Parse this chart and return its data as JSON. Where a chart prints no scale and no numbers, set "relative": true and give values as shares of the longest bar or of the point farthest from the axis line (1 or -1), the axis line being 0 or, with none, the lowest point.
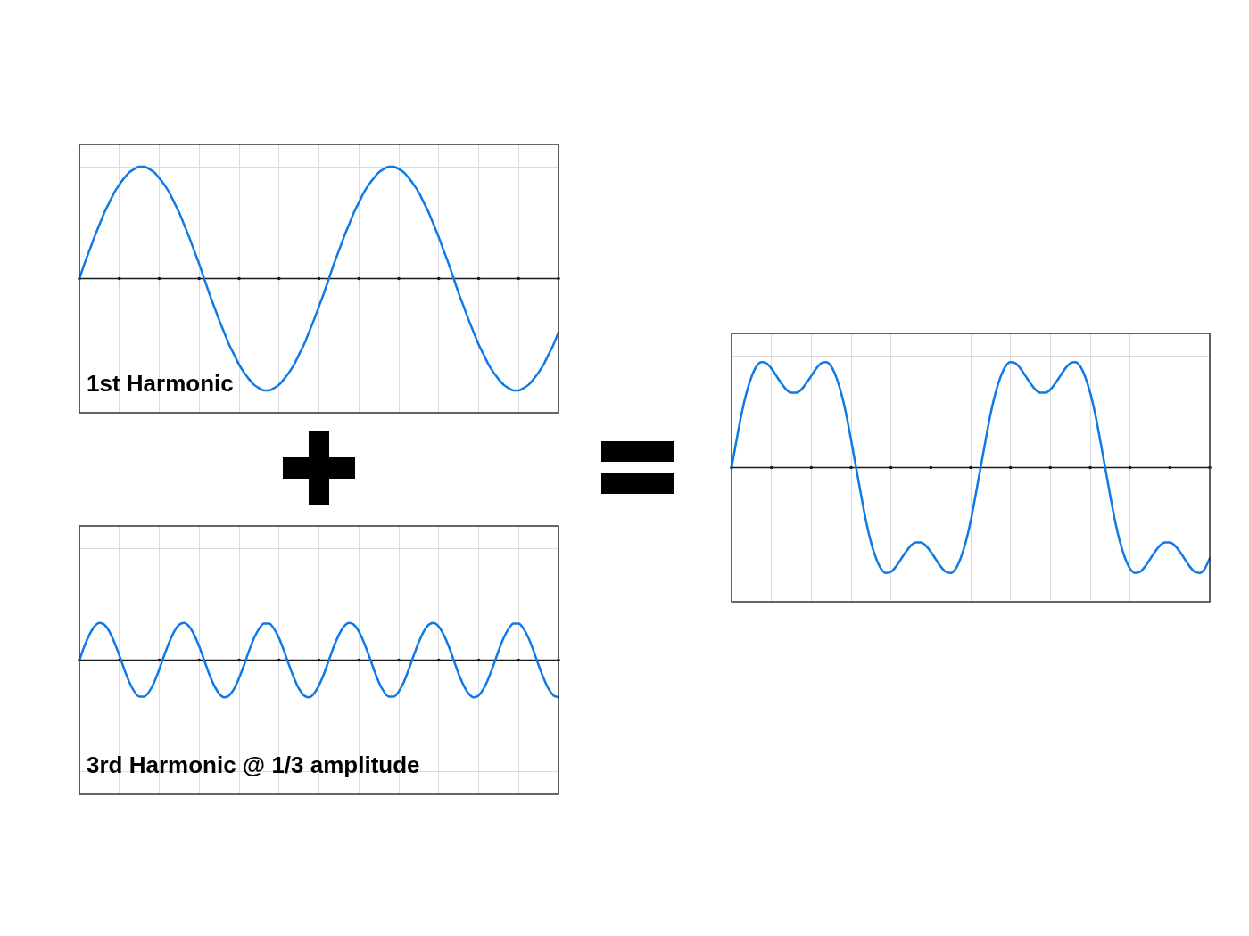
{
  "chart_data": [
    {
      "type": "line",
      "title": "1st Harmonic",
      "categories": [
        null,
        null,
        null,
        null,
        null,
        null,
        null,
        null,
        null,
        null,
        null,
        null,
        null,
        null,
        null,
        null,
        null,
        null,
        null,
        null,
        null,
        null,
        null,
        null,
        null,
        null,
        null,
        null,
        null,
        null,
        null,
        null,
        null,
        null,
        null,
        null,
        null,
        null,
        null,
        null,
        null,
        null,
        null,
        null,
        null,
        null,
        null,
        null,
        null,
        null,
        null,
        null,
        null,
        null,
        null,
        null,
        null,
        null,
        null,
        null,
        null,
        null,
        null,
        null,
        null,
        null,
        null,
        null,
        null,
        null,
        null,
        null,
        null,
        null,
        null,
        null,
        null,
        null,
        null,
        null,
        null,
        null,
        null,
        null,
        null,
        null,
        null,
        null,
        null,
        null,
        null,
        null,
        null,
        null,
        null,
        null,
        null
      ],
      "values": [
        0,
        0.13,
        0.25,
        0.37,
        0.48,
        0.59,
        0.68,
        0.77,
        0.84,
        0.9,
        0.95,
        0.98,
        1,
        1,
        0.98,
        0.95,
        0.9,
        0.84,
        0.77,
        0.68,
        0.59,
        0.48,
        0.37,
        0.25,
        0.13,
        0,
        -0.13,
        -0.25,
        -0.37,
        -0.48,
        -0.59,
        -0.68,
        -0.77,
        -0.84,
        -0.9,
        -0.95,
        -0.98,
        -1,
        -1,
        -0.98,
        -0.95,
        -0.9,
        -0.84,
        -0.77,
        -0.68,
        -0.59,
        -0.48,
        -0.37,
        -0.25,
        -0.13,
        0,
        0.13,
        0.25,
        0.37,
        0.48,
        0.59,
        0.68,
        0.77,
        0.84,
        0.9,
        0.95,
        0.98,
        1,
        1,
        0.98,
        0.95,
        0.9,
        0.84,
        0.77,
        0.68,
        0.59,
        0.48,
        0.37,
        0.25,
        0.13,
        0,
        -0.13,
        -0.25,
        -0.37,
        -0.48,
        -0.59,
        -0.68,
        -0.77,
        -0.84,
        -0.9,
        -0.95,
        -0.98,
        -1,
        -1,
        -0.98,
        -0.95,
        -0.9,
        -0.84,
        -0.77,
        -0.68,
        -0.59,
        -0.48
      ],
      "color": "#0f7ae5",
      "relative": true,
      "grid": true,
      "tick_labels": false
    },
    {
      "type": "line",
      "title": "3rd Harmonic @ 1/3 amplitude",
      "categories": [
        null,
        null,
        null,
        null,
        null,
        null,
        null,
        null,
        null,
        null,
        null,
        null,
        null,
        null,
        null,
        null,
        null,
        null,
        null,
        null,
        null,
        null,
        null,
        null,
        null,
        null,
        null,
        null,
        null,
        null,
        null,
        null,
        null,
        null,
        null,
        null,
        null,
        null,
        null,
        null,
        null,
        null,
        null,
        null,
        null,
        null,
        null,
        null,
        null,
        null,
        null,
        null,
        null,
        null,
        null,
        null,
        null,
        null,
        null,
        null,
        null,
        null,
        null,
        null,
        null,
        null,
        null,
        null,
        null,
        null,
        null,
        null,
        null,
        null,
        null,
        null,
        null,
        null,
        null,
        null,
        null,
        null,
        null,
        null,
        null,
        null,
        null,
        null,
        null,
        null,
        null,
        null,
        null,
        null,
        null,
        null,
        null
      ],
      "values": [
        0,
        0.37,
        0.68,
        0.9,
        1,
        0.95,
        0.77,
        0.48,
        0.13,
        -0.25,
        -0.59,
        -0.84,
        -0.98,
        -0.98,
        -0.84,
        -0.59,
        -0.25,
        0.13,
        0.48,
        0.77,
        0.95,
        1,
        0.9,
        0.68,
        0.37,
        0,
        -0.37,
        -0.68,
        -0.9,
        -1,
        -0.95,
        -0.77,
        -0.48,
        -0.13,
        0.25,
        0.59,
        0.84,
        0.98,
        0.98,
        0.84,
        0.59,
        0.25,
        -0.13,
        -0.48,
        -0.77,
        -0.95,
        -1,
        -0.9,
        -0.68,
        -0.37,
        0,
        0.37,
        0.68,
        0.9,
        1,
        0.95,
        0.77,
        0.48,
        0.13,
        -0.25,
        -0.59,
        -0.84,
        -0.98,
        -0.98,
        -0.84,
        -0.59,
        -0.25,
        0.13,
        0.48,
        0.77,
        0.95,
        1,
        0.9,
        0.68,
        0.37,
        0,
        -0.37,
        -0.68,
        -0.9,
        -1,
        -0.95,
        -0.77,
        -0.48,
        -0.13,
        0.25,
        0.59,
        0.84,
        0.98,
        0.98,
        0.84,
        0.59,
        0.25,
        -0.13,
        -0.48,
        -0.77,
        -0.95,
        -1
      ],
      "color": "#0f7ae5",
      "relative": true,
      "grid": true,
      "tick_labels": false
    },
    {
      "type": "line",
      "categories": [
        null,
        null,
        null,
        null,
        null,
        null,
        null,
        null,
        null,
        null,
        null,
        null,
        null,
        null,
        null,
        null,
        null,
        null,
        null,
        null,
        null,
        null,
        null,
        null,
        null,
        null,
        null,
        null,
        null,
        null,
        null,
        null,
        null,
        null,
        null,
        null,
        null,
        null,
        null,
        null,
        null,
        null,
        null,
        null,
        null,
        null,
        null,
        null,
        null,
        null,
        null,
        null,
        null,
        null,
        null,
        null,
        null,
        null,
        null,
        null,
        null,
        null,
        null,
        null,
        null,
        null,
        null,
        null,
        null,
        null,
        null,
        null,
        null,
        null,
        null,
        null,
        null,
        null,
        null,
        null,
        null,
        null,
        null,
        null,
        null,
        null,
        null,
        null,
        null,
        null,
        null,
        null,
        null,
        null,
        null,
        null,
        null
      ],
      "values": [
        0,
        0.26,
        0.51,
        0.71,
        0.86,
        0.96,
        1,
        0.99,
        0.94,
        0.87,
        0.8,
        0.74,
        0.71,
        0.71,
        0.74,
        0.8,
        0.87,
        0.94,
        0.99,
        1,
        0.96,
        0.86,
        0.71,
        0.51,
        0.26,
        0,
        -0.26,
        -0.51,
        -0.71,
        -0.86,
        -0.96,
        -1,
        -0.99,
        -0.94,
        -0.87,
        -0.8,
        -0.74,
        -0.71,
        -0.71,
        -0.74,
        -0.8,
        -0.87,
        -0.94,
        -0.99,
        -1,
        -0.96,
        -0.86,
        -0.71,
        -0.51,
        -0.26,
        0,
        0.26,
        0.51,
        0.71,
        0.86,
        0.96,
        1,
        0.99,
        0.94,
        0.87,
        0.8,
        0.74,
        0.71,
        0.71,
        0.74,
        0.8,
        0.87,
        0.94,
        0.99,
        1,
        0.96,
        0.86,
        0.71,
        0.51,
        0.26,
        0,
        -0.26,
        -0.51,
        -0.71,
        -0.86,
        -0.96,
        -1,
        -0.99,
        -0.94,
        -0.87,
        -0.8,
        -0.74,
        -0.71,
        -0.71,
        -0.74,
        -0.8,
        -0.87,
        -0.94,
        -0.99,
        -1,
        -0.96,
        -0.86
      ],
      "color": "#0f7ae5",
      "relative": true,
      "grid": true,
      "tick_labels": false
    }
  ]
}
